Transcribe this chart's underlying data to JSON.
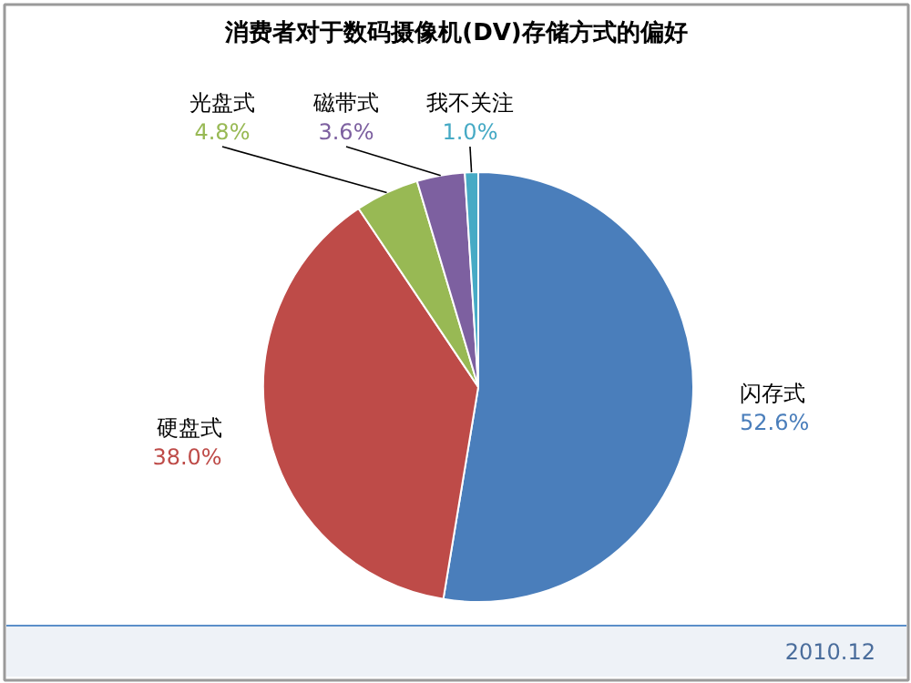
{
  "chart_data": {
    "type": "pie",
    "title": "消费者对于数码摄像机(DV)存储方式的偏好",
    "categories": [
      "闪存式",
      "硬盘式",
      "光盘式",
      "磁带式",
      "我不关注"
    ],
    "values": [
      52.6,
      38.0,
      4.8,
      3.6,
      1.0
    ],
    "colors": [
      "#4a7ebb",
      "#be4b48",
      "#98b954",
      "#7d60a0",
      "#46aac5"
    ],
    "value_labels": [
      "52.6%",
      "38.0%",
      "4.8%",
      "3.6%",
      "1.0%"
    ],
    "annotations": [
      "2010.12"
    ]
  }
}
